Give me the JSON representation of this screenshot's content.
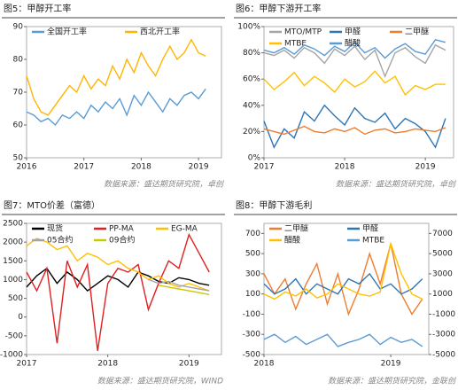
{
  "chart_data": [
    {
      "type": "line",
      "title": "图5：甲醇开工率",
      "source": "数据来源：盛达期货研究院，卓创",
      "x": [
        2016,
        2016.125,
        2016.25,
        2016.375,
        2016.5,
        2016.625,
        2016.75,
        2016.875,
        2017,
        2017.125,
        2017.25,
        2017.375,
        2017.5,
        2017.625,
        2017.75,
        2017.875,
        2018,
        2018.125,
        2018.25,
        2018.375,
        2018.5,
        2018.625,
        2018.75,
        2018.875,
        2019,
        2019.125
      ],
      "xlim": [
        2016,
        2019.4
      ],
      "xticks": [
        2016,
        2017,
        2018,
        2019
      ],
      "ylim": [
        50,
        90
      ],
      "yticks": [
        50,
        60,
        70,
        80,
        90
      ],
      "series": [
        {
          "name": "全国开工率",
          "color": "#5b9bd5",
          "values": [
            64,
            63,
            61,
            62,
            60,
            63,
            62,
            64,
            62,
            66,
            64,
            67,
            65,
            68,
            63,
            69,
            66,
            70,
            67,
            64,
            68,
            66,
            69,
            70,
            68,
            71
          ]
        },
        {
          "name": "西北开工率",
          "color": "#ffb400",
          "values": [
            75,
            68,
            64,
            63,
            66,
            69,
            72,
            70,
            75,
            71,
            74,
            72,
            78,
            74,
            80,
            76,
            82,
            78,
            75,
            80,
            84,
            80,
            82,
            86,
            82,
            81
          ]
        }
      ]
    },
    {
      "type": "line",
      "title": "图6：甲醇下游开工率",
      "source": "数据来源：盛达期货研究院，卓创",
      "x": [
        2017,
        2017.125,
        2017.25,
        2017.375,
        2017.5,
        2017.625,
        2017.75,
        2017.875,
        2018,
        2018.125,
        2018.25,
        2018.375,
        2018.5,
        2018.625,
        2018.75,
        2018.875,
        2019,
        2019.125,
        2019.25
      ],
      "xlim": [
        2017,
        2019.35
      ],
      "xticks": [
        2017,
        2018,
        2019
      ],
      "ylim": [
        0,
        100
      ],
      "yticks": [
        {
          "value": 0,
          "label": "0%"
        },
        {
          "value": 20,
          "label": "20%"
        },
        {
          "value": 40,
          "label": "40%"
        },
        {
          "value": 60,
          "label": "60%"
        },
        {
          "value": 80,
          "label": "80%"
        },
        {
          "value": 100,
          "label": "100%"
        }
      ],
      "series": [
        {
          "name": "MTO/MTP",
          "color": "#a5a5a5",
          "values": [
            80,
            78,
            82,
            76,
            84,
            80,
            72,
            83,
            78,
            85,
            75,
            82,
            62,
            80,
            84,
            77,
            72,
            86,
            82
          ]
        },
        {
          "name": "甲醛",
          "color": "#2e75b6",
          "values": [
            28,
            8,
            22,
            15,
            35,
            28,
            40,
            32,
            25,
            38,
            30,
            27,
            34,
            22,
            30,
            26,
            20,
            8,
            30
          ]
        },
        {
          "name": "二甲醚",
          "color": "#ed7d31",
          "values": [
            22,
            20,
            18,
            21,
            24,
            20,
            19,
            22,
            20,
            23,
            18,
            21,
            22,
            19,
            20,
            22,
            21,
            20,
            23
          ]
        },
        {
          "name": "MTBE",
          "color": "#ffc000",
          "values": [
            60,
            52,
            58,
            65,
            55,
            62,
            57,
            50,
            60,
            54,
            58,
            66,
            57,
            62,
            48,
            55,
            52,
            56,
            56
          ]
        },
        {
          "name": "醋酸",
          "color": "#5b9bd5",
          "values": [
            82,
            80,
            84,
            79,
            86,
            83,
            78,
            85,
            81,
            88,
            80,
            84,
            76,
            83,
            87,
            81,
            79,
            90,
            88
          ]
        }
      ]
    },
    {
      "type": "line",
      "title": "图7：MTO价差（富德）",
      "source": "数据来源：盛达期货研究院，WIND",
      "x": [
        2017,
        2017.125,
        2017.25,
        2017.375,
        2017.5,
        2017.625,
        2017.75,
        2017.875,
        2018,
        2018.125,
        2018.25,
        2018.375,
        2018.5,
        2018.625,
        2018.75,
        2018.875,
        2019,
        2019.125,
        2019.25
      ],
      "xlim": [
        2017,
        2019.4
      ],
      "xticks": [
        2017,
        2018,
        2019
      ],
      "ylim": [
        -1000,
        2500
      ],
      "yticks": [
        -1000,
        -500,
        0,
        500,
        1000,
        1500,
        2000,
        2500
      ],
      "series": [
        {
          "name": "现货",
          "color": "#000000",
          "values": [
            800,
            1100,
            1300,
            900,
            1200,
            1000,
            700,
            900,
            1100,
            1000,
            800,
            1200,
            1100,
            950,
            900,
            1050,
            1000,
            900,
            850
          ]
        },
        {
          "name": "PP-MA",
          "color": "#e02020",
          "values": [
            1200,
            700,
            1300,
            -700,
            1500,
            800,
            1400,
            -900,
            900,
            1300,
            1200,
            1400,
            200,
            900,
            1500,
            1300,
            2200,
            1700,
            1200
          ]
        },
        {
          "name": "EG-MA",
          "color": "#ffc000",
          "values": [
            1900,
            2100,
            2000,
            1800,
            1900,
            1500,
            1700,
            1600,
            1400,
            1500,
            1300,
            1200,
            1000,
            1100,
            900,
            800,
            900,
            800,
            700
          ]
        },
        {
          "name": "05合约",
          "color": "#a5a5a5",
          "values": [
            null,
            null,
            null,
            null,
            null,
            null,
            null,
            null,
            null,
            null,
            null,
            null,
            1000,
            900,
            950,
            850,
            800,
            750,
            700
          ]
        },
        {
          "name": "09合约",
          "color": "#c9c900",
          "values": [
            null,
            null,
            null,
            null,
            null,
            null,
            null,
            null,
            null,
            null,
            null,
            null,
            null,
            850,
            800,
            750,
            700,
            650,
            600
          ]
        }
      ]
    },
    {
      "type": "line",
      "title": "图8：甲醇下游毛利",
      "source": "数据来源：盛达期货研究院，金联创",
      "x": [
        2018,
        2018.083,
        2018.167,
        2018.25,
        2018.333,
        2018.417,
        2018.5,
        2018.583,
        2018.667,
        2018.75,
        2018.833,
        2018.917,
        2019,
        2019.083,
        2019.167,
        2019.25
      ],
      "xlim": [
        2018,
        2019.3
      ],
      "xticks": [
        2018,
        2019
      ],
      "ylim": [
        -500,
        800
      ],
      "yticks": [
        -500,
        -300,
        -100,
        100,
        300,
        500,
        700
      ],
      "y2lim": [
        -5000,
        8000
      ],
      "y2ticks": [
        -5000,
        -3000,
        -1000,
        1000,
        3000,
        5000,
        7000
      ],
      "series": [
        {
          "name": "二甲醚",
          "color": "#ed7d31",
          "values": [
            300,
            100,
            250,
            -50,
            200,
            400,
            0,
            300,
            -100,
            150,
            500,
            200,
            600,
            100,
            -100,
            50
          ]
        },
        {
          "name": "甲醛",
          "color": "#2e75b6",
          "values": [
            200,
            100,
            150,
            250,
            100,
            200,
            150,
            100,
            250,
            200,
            300,
            150,
            200,
            100,
            150,
            250
          ]
        },
        {
          "name": "醋酸",
          "color": "#ffc000",
          "axis": "y2",
          "values": [
            1000,
            500,
            1200,
            800,
            1500,
            600,
            1000,
            2000,
            1500,
            1000,
            800,
            1200,
            6000,
            3000,
            1000,
            500
          ]
        },
        {
          "name": "MTBE",
          "color": "#5b9bd5",
          "values": [
            -350,
            -300,
            -380,
            -320,
            -400,
            -350,
            -300,
            -420,
            -380,
            -350,
            -300,
            -400,
            -330,
            -380,
            -350,
            -420
          ]
        }
      ]
    }
  ]
}
